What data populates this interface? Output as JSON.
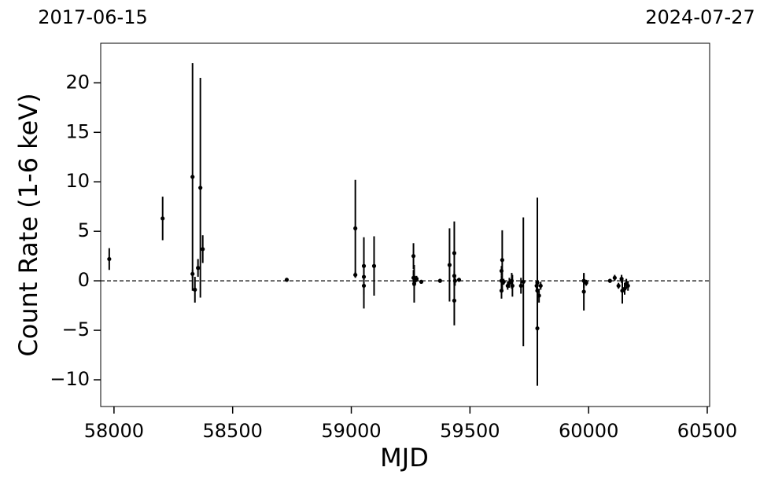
{
  "chart_data": {
    "type": "errorbar",
    "x_label": "MJD",
    "y_label": "Count Rate (1-6 keV)",
    "top_left_label": "2017-06-15",
    "top_right_label": "2024-07-27",
    "xlim": [
      57944,
      60510
    ],
    "ylim": [
      -12.7,
      24
    ],
    "xticks": [
      58000,
      58500,
      59000,
      59500,
      60000,
      60500
    ],
    "yticks": [
      {
        "value": -10,
        "label": "−10"
      },
      {
        "value": -5,
        "label": "−5"
      },
      0,
      5,
      10,
      15,
      20
    ],
    "hline": 0,
    "color": "#000000",
    "x": [
      57980,
      58205,
      58331,
      58331,
      58341,
      58354,
      58364,
      58374,
      58728,
      59017,
      59017,
      59053,
      59053,
      59053,
      59096,
      59262,
      59262,
      59265,
      59268,
      59275,
      59295,
      59374,
      59414,
      59434,
      59434,
      59434,
      59437,
      59454,
      59636,
      59633,
      59633,
      59633,
      59642,
      59659,
      59666,
      59676,
      59679,
      59715,
      59725,
      59781,
      59784,
      59784,
      59784,
      59791,
      59798,
      59980,
      59980,
      59990,
      60090,
      60110,
      60126,
      60139,
      60142,
      60152,
      60159,
      60166
    ],
    "values": [
      2.2,
      6.3,
      10.5,
      0.7,
      -0.9,
      1.3,
      9.4,
      3.2,
      0.1,
      5.3,
      0.6,
      1.5,
      0.4,
      -0.5,
      1.5,
      2.5,
      0.3,
      -0.3,
      0.0,
      0.2,
      -0.1,
      0.0,
      1.6,
      2.8,
      0.5,
      -2.0,
      0.0,
      0.1,
      2.1,
      1.0,
      -1.0,
      0.0,
      -0.1,
      -0.5,
      -0.2,
      0.0,
      -0.5,
      -0.5,
      -0.1,
      -0.5,
      -4.8,
      -0.2,
      -1.0,
      -1.5,
      -0.5,
      -1.1,
      0.0,
      -0.2,
      0.0,
      0.3,
      -0.5,
      0.2,
      -1.0,
      -0.8,
      -0.3,
      -0.5
    ],
    "errors": [
      1.1,
      2.2,
      11.5,
      0.4,
      1.3,
      0.9,
      11.1,
      1.4,
      0.2,
      4.9,
      0.3,
      2.9,
      0.3,
      2.3,
      3.0,
      1.3,
      0.8,
      1.9,
      0.5,
      0.3,
      0.2,
      0.2,
      3.7,
      3.2,
      0.5,
      2.5,
      0.5,
      0.2,
      3.0,
      0.5,
      0.8,
      0.5,
      0.3,
      0.4,
      0.5,
      0.8,
      1.1,
      0.8,
      6.5,
      0.5,
      5.8,
      8.6,
      0.6,
      0.7,
      0.4,
      1.9,
      0.7,
      0.3,
      0.2,
      0.3,
      0.3,
      0.4,
      1.3,
      0.6,
      0.5,
      0.5
    ]
  }
}
